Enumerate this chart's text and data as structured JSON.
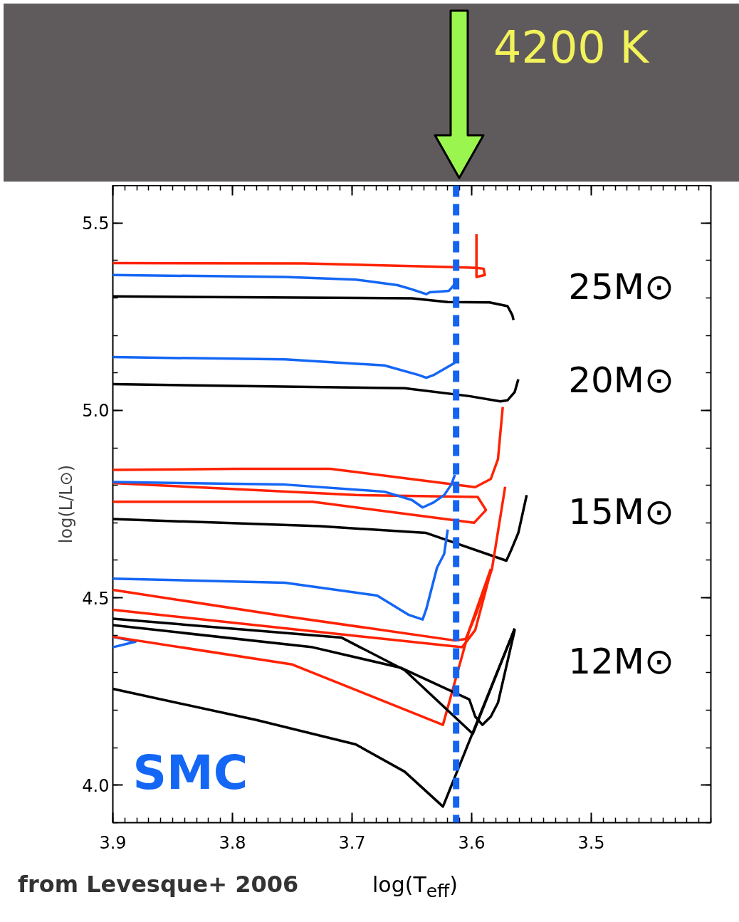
{
  "chart_data": {
    "type": "line",
    "xlabel": "log(T$_{eff}$)",
    "ylabel": "log(L/L⊙)",
    "xlim": [
      3.9,
      3.4
    ],
    "ylim": [
      3.9,
      5.6
    ],
    "xticks": [
      3.9,
      3.8,
      3.7,
      3.6,
      3.5
    ],
    "yticks": [
      {
        "value": 4,
        "label": "4.0"
      },
      4.5,
      {
        "value": 5,
        "label": "5.0"
      },
      5.5
    ],
    "ref_lines": [
      {
        "axis": "x",
        "value": 3.613,
        "color": "#1464f0",
        "line_style": "dashed"
      }
    ],
    "annotations": [
      "4200 K",
      "SMC",
      "from Levesque+ 2006",
      "25M⊙",
      "20M⊙",
      "15M⊙",
      "12M⊙"
    ],
    "series": [
      {
        "color": "#ff2200",
        "x": [
          3.9,
          3.74,
          3.614,
          3.596,
          3.59,
          3.589,
          3.596,
          3.596
        ],
        "values": [
          5.393,
          5.392,
          5.382,
          5.38,
          5.378,
          5.361,
          5.356,
          5.47
        ]
      },
      {
        "color": "#1466f5",
        "x": [
          3.9,
          3.756,
          3.697,
          3.662,
          3.65,
          3.638,
          3.635,
          3.626,
          3.619,
          3.614
        ],
        "values": [
          5.361,
          5.356,
          5.349,
          5.334,
          5.323,
          5.31,
          5.315,
          5.317,
          5.319,
          5.337
        ]
      },
      {
        "color": "#000000",
        "x": [
          3.9,
          3.65,
          3.62,
          3.585,
          3.57,
          3.566,
          3.565
        ],
        "values": [
          5.304,
          5.299,
          5.289,
          5.288,
          5.278,
          5.254,
          5.241
        ]
      },
      {
        "color": "#1466f5",
        "x": [
          3.9,
          3.756,
          3.673,
          3.644,
          3.638,
          3.632,
          3.614
        ],
        "values": [
          5.142,
          5.136,
          5.12,
          5.094,
          5.087,
          5.094,
          5.127
        ]
      },
      {
        "color": "#000000",
        "x": [
          3.9,
          3.656,
          3.602,
          3.576,
          3.57,
          3.564,
          3.561
        ],
        "values": [
          5.07,
          5.059,
          5.038,
          5.024,
          5.027,
          5.049,
          5.083
        ]
      },
      {
        "color": "#ff2200",
        "x": [
          3.9,
          3.798,
          3.718,
          3.597,
          3.584,
          3.578,
          3.574
        ],
        "values": [
          4.841,
          4.844,
          4.844,
          4.795,
          4.817,
          4.87,
          5.009
        ]
      },
      {
        "color": "#ff2200",
        "x": [
          3.9,
          3.697,
          3.595,
          3.588,
          3.598,
          3.733,
          3.9
        ],
        "values": [
          4.806,
          4.774,
          4.769,
          4.734,
          4.7,
          4.756,
          4.756
        ]
      },
      {
        "color": "#1466f5",
        "x": [
          3.9,
          3.756,
          3.673,
          3.65,
          3.641,
          3.632,
          3.623,
          3.617,
          3.614
        ],
        "values": [
          4.809,
          4.802,
          4.783,
          4.761,
          4.741,
          4.754,
          4.774,
          4.802,
          4.828
        ]
      },
      {
        "color": "#000000",
        "x": [
          3.9,
          3.727,
          3.638,
          3.571,
          3.567,
          3.561,
          3.554
        ],
        "values": [
          4.71,
          4.691,
          4.673,
          4.599,
          4.627,
          4.673,
          4.774
        ]
      },
      {
        "color": "#1466f5",
        "x": [
          3.9,
          3.756,
          3.679,
          3.653,
          3.641,
          3.638,
          3.635,
          3.629,
          3.623,
          3.62
        ],
        "values": [
          4.551,
          4.54,
          4.506,
          4.455,
          4.442,
          4.469,
          4.506,
          4.58,
          4.617,
          4.682
        ]
      },
      {
        "color": "#1466f5",
        "x": [
          3.9,
          3.881,
          3.9
        ],
        "values": [
          4.396,
          4.383,
          4.368
        ]
      },
      {
        "color": "#ff2200",
        "x": [
          3.9,
          3.756,
          3.614,
          3.605,
          3.597,
          3.583,
          3.572
        ],
        "values": [
          4.521,
          4.451,
          4.386,
          4.39,
          4.451,
          4.577,
          4.796
        ]
      },
      {
        "color": "#ff2200",
        "x": [
          3.9,
          3.608,
          3.597,
          3.584
        ],
        "values": [
          4.468,
          4.368,
          4.414,
          4.571
        ]
      },
      {
        "color": "#ff2200",
        "x": [
          3.9,
          3.75,
          3.624,
          3.602,
          3.584
        ],
        "values": [
          4.396,
          4.322,
          4.161,
          4.414,
          4.577
        ]
      },
      {
        "color": "#000000",
        "x": [
          3.9,
          3.709,
          3.656,
          3.599,
          3.564
        ],
        "values": [
          4.444,
          4.394,
          4.307,
          4.137,
          4.418
        ]
      },
      {
        "color": "#000000",
        "x": [
          3.9,
          3.733,
          3.659,
          3.602,
          3.597,
          3.591,
          3.584,
          3.578,
          3.564
        ],
        "values": [
          4.427,
          4.368,
          4.313,
          4.229,
          4.183,
          4.161,
          4.183,
          4.22,
          4.414
        ]
      },
      {
        "color": "#000000",
        "x": [
          3.9,
          3.78,
          3.697,
          3.656,
          3.624,
          3.564
        ],
        "values": [
          4.257,
          4.174,
          4.109,
          4.036,
          3.943,
          4.418
        ]
      }
    ]
  }
}
